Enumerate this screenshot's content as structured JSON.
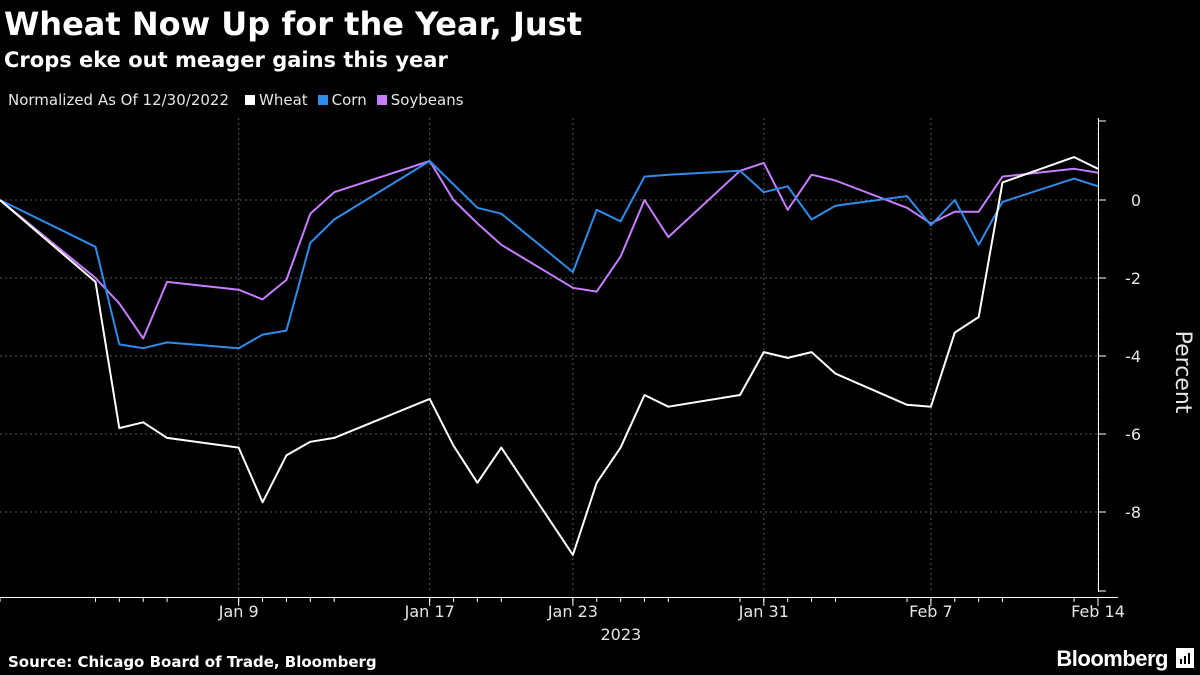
{
  "chart_data": {
    "type": "line",
    "title": "Wheat Now Up for the Year, Just",
    "subtitle": "Crops eke out meager gains this year",
    "legend_note": "Normalized As Of 12/30/2022",
    "ylabel": "Percent",
    "year_label": "2023",
    "ylim": [
      -10,
      2
    ],
    "y_ticks": [
      0,
      -2,
      -4,
      -6,
      -8
    ],
    "grid": true,
    "legend_placement": "top-left",
    "x_ticks": [
      {
        "label": "Jan 9",
        "date": "2023-01-09"
      },
      {
        "label": "Jan 17",
        "date": "2023-01-17"
      },
      {
        "label": "Jan 23",
        "date": "2023-01-23"
      },
      {
        "label": "Jan 31",
        "date": "2023-01-31"
      },
      {
        "label": "Feb 7",
        "date": "2023-02-07"
      },
      {
        "label": "Feb 14",
        "date": "2023-02-14"
      }
    ],
    "x": [
      "2022-12-30",
      "2023-01-03",
      "2023-01-04",
      "2023-01-05",
      "2023-01-06",
      "2023-01-09",
      "2023-01-10",
      "2023-01-11",
      "2023-01-12",
      "2023-01-13",
      "2023-01-17",
      "2023-01-18",
      "2023-01-19",
      "2023-01-20",
      "2023-01-23",
      "2023-01-24",
      "2023-01-25",
      "2023-01-26",
      "2023-01-27",
      "2023-01-30",
      "2023-01-31",
      "2023-02-01",
      "2023-02-02",
      "2023-02-03",
      "2023-02-06",
      "2023-02-07",
      "2023-02-08",
      "2023-02-09",
      "2023-02-10",
      "2023-02-13",
      "2023-02-14"
    ],
    "series": [
      {
        "name": "Wheat",
        "color": "#ffffff",
        "values": [
          0,
          -2.1,
          -5.85,
          -5.7,
          -6.1,
          -6.35,
          -7.75,
          -6.55,
          -6.2,
          -6.1,
          -5.1,
          -6.3,
          -7.25,
          -6.35,
          -9.1,
          -7.25,
          -6.35,
          -5.0,
          -5.3,
          -5.0,
          -3.9,
          -4.05,
          -3.9,
          -4.45,
          -5.25,
          -5.3,
          -3.4,
          -3.0,
          0.45,
          1.1,
          0.8
        ]
      },
      {
        "name": "Corn",
        "color": "#2f8ceb",
        "values": [
          0,
          -1.2,
          -3.7,
          -3.8,
          -3.65,
          -3.8,
          -3.45,
          -3.35,
          -1.1,
          -0.5,
          1.0,
          0.4,
          -0.2,
          -0.35,
          -1.85,
          -0.25,
          -0.55,
          0.6,
          0.65,
          0.75,
          0.2,
          0.35,
          -0.5,
          -0.15,
          0.1,
          -0.65,
          0.0,
          -1.15,
          -0.05,
          0.55,
          0.35
        ]
      },
      {
        "name": "Soybeans",
        "color": "#c77dff",
        "values": [
          0,
          -2.0,
          -2.65,
          -3.55,
          -2.1,
          -2.3,
          -2.55,
          -2.05,
          -0.35,
          0.2,
          1.0,
          0.0,
          -0.6,
          -1.15,
          -2.25,
          -2.35,
          -1.45,
          0.0,
          -0.95,
          0.75,
          0.95,
          -0.25,
          0.65,
          0.5,
          -0.2,
          -0.6,
          -0.3,
          -0.3,
          0.6,
          0.8,
          0.7
        ]
      }
    ]
  },
  "footer": {
    "source": "Source: Chicago Board of Trade, Bloomberg",
    "brand": "Bloomberg"
  }
}
